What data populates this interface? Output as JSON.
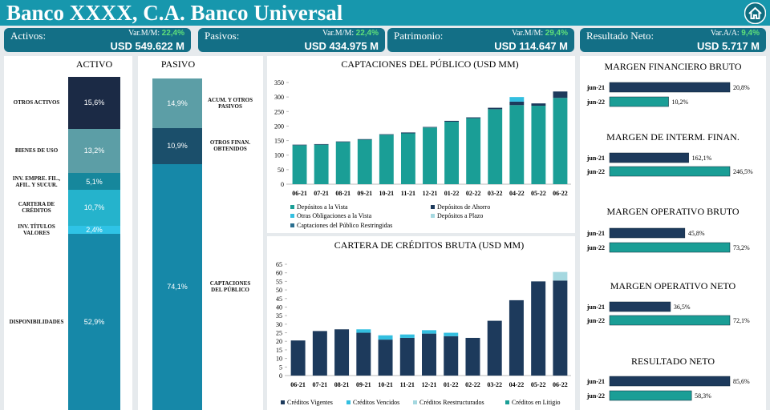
{
  "header": {
    "title": "Banco XXXX, C.A. Banco Universal"
  },
  "kpis": [
    {
      "label": "Activos:",
      "change_label": "Var.M/M:",
      "change": "22,4%",
      "value": "USD 549.622 M"
    },
    {
      "label": "Pasivos:",
      "change_label": "Var.M/M:",
      "change": "22,4%",
      "value": "USD 434.975 M"
    },
    {
      "label": "Patrimonio:",
      "change_label": "Var.M/M:",
      "change": "29,4%",
      "value": "USD 114.647 M"
    },
    {
      "label": "Resultado Neto:",
      "change_label": "Var.A/A:",
      "change": "9,4%",
      "value": "USD 5.717 M"
    }
  ],
  "chart_data": [
    {
      "type": "stack",
      "title": "ACTIVO",
      "series": [
        {
          "name": "DISPONIBILIDADES",
          "color": "#1688a8",
          "values": [
            52.9
          ],
          "value_labels": [
            "52,9%"
          ]
        },
        {
          "name": "INV. TÍTULOS VALORES",
          "color": "#2fc3e6",
          "values": [
            2.4
          ],
          "value_labels": [
            "2,4%"
          ]
        },
        {
          "name": "CARTERA DE CRÉDITOS",
          "color": "#25b3cc",
          "values": [
            10.7
          ],
          "value_labels": [
            "10,7%"
          ]
        },
        {
          "name": "INV. EMPRE. FIL., AFIL. Y SUCUR.",
          "color": "#16879c",
          "values": [
            5.1
          ],
          "value_labels": [
            "5,1%"
          ]
        },
        {
          "name": "BIENES DE USO",
          "color": "#5c9ea6",
          "values": [
            13.2
          ],
          "value_labels": [
            "13,2%"
          ]
        },
        {
          "name": "OTROS ACTIVOS",
          "color": "#1b2a45",
          "values": [
            15.6
          ],
          "value_labels": [
            "15,6%"
          ]
        }
      ]
    },
    {
      "type": "stack",
      "title": "PASIVO",
      "series": [
        {
          "name": "CAPTACIONES DEL PÚBLICO",
          "color": "#1688a8",
          "values": [
            74.1
          ],
          "value_labels": [
            "74,1%"
          ]
        },
        {
          "name": "OTROS FINAN. OBTENIDOS",
          "color": "#1b4f6b",
          "values": [
            10.9
          ],
          "value_labels": [
            "10,9%"
          ]
        },
        {
          "name": "ACUM. Y OTROS PASIVOS",
          "color": "#5c9ea6",
          "values": [
            14.9
          ],
          "value_labels": [
            "14,9%"
          ]
        }
      ]
    },
    {
      "type": "column",
      "title": "CAPTACIONES DEL PÚBLICO (USD MM)",
      "categories": [
        "06-21",
        "07-21",
        "08-21",
        "09-21",
        "10-21",
        "11-21",
        "12-21",
        "01-22",
        "02-22",
        "03-22",
        "04-22",
        "05-22",
        "06-22"
      ],
      "ylim": [
        0,
        350
      ],
      "yticks": [
        0,
        50,
        100,
        150,
        200,
        250,
        300,
        350
      ],
      "series": [
        {
          "name": "Depósitos a la Vista",
          "color": "#1a9e96",
          "values": [
            134,
            136,
            145,
            153,
            170,
            175,
            195,
            215,
            227,
            258,
            272,
            270,
            297
          ]
        },
        {
          "name": "Depósitos de Ahorro",
          "color": "#1d3a5c",
          "values": [
            2,
            2,
            2,
            2,
            2,
            3,
            2,
            3,
            3,
            5,
            12,
            8,
            22
          ]
        },
        {
          "name": "Otras Obligaciones a la Vista",
          "color": "#33bfe0",
          "values": [
            0,
            0,
            0,
            0,
            0,
            0,
            0,
            0,
            0,
            0,
            16,
            0,
            0
          ]
        },
        {
          "name": "Depósitos a Plazo",
          "color": "#a5d8e0",
          "values": [
            0,
            0,
            0,
            0,
            0,
            0,
            0,
            0,
            0,
            0,
            0,
            0,
            0
          ]
        },
        {
          "name": "Captaciones del Público Restringidas",
          "color": "#2a6e8f",
          "values": [
            0,
            0,
            0,
            0,
            0,
            0,
            0,
            0,
            0,
            0,
            0,
            0,
            0
          ]
        }
      ]
    },
    {
      "type": "column",
      "title": "CARTERA DE CRÉDITOS BRUTA (USD MM)",
      "categories": [
        "06-21",
        "07-21",
        "08-21",
        "09-21",
        "10-21",
        "11-21",
        "12-21",
        "01-22",
        "02-22",
        "03-22",
        "04-22",
        "05-22",
        "06-22"
      ],
      "ylim": [
        0,
        65
      ],
      "yticks": [
        0,
        5,
        10,
        15,
        20,
        25,
        30,
        35,
        40,
        45,
        50,
        55,
        60,
        65
      ],
      "series": [
        {
          "name": "Créditos Vigentes",
          "color": "#1d3a5c",
          "values": [
            20.5,
            26,
            27,
            25,
            21,
            22,
            24.5,
            23,
            22,
            32,
            44,
            55,
            55.5
          ]
        },
        {
          "name": "Créditos Vencidos",
          "color": "#33bfe0",
          "values": [
            0,
            0,
            0,
            2,
            2.5,
            2,
            2,
            2,
            0,
            0,
            0,
            0,
            0
          ]
        },
        {
          "name": "Créditos Reestructurados",
          "color": "#a5d8e0",
          "values": [
            0,
            0,
            0,
            0,
            0,
            0,
            0,
            0,
            0,
            0,
            0,
            0,
            5
          ]
        },
        {
          "name": "Créditos en Litigio",
          "color": "#1a9e96",
          "values": [
            0,
            0,
            0,
            0,
            0,
            0,
            0,
            0,
            0,
            0,
            0,
            0,
            0
          ]
        }
      ]
    },
    {
      "type": "hbar",
      "title": "MARGEN FINANCIERO BRUTO",
      "categories": [
        "jun-21",
        "jun-22"
      ],
      "colors": [
        "#1d3a5c",
        "#1a9e96"
      ],
      "values": [
        20.8,
        10.2
      ],
      "value_labels": [
        "20,8%",
        "10,2%"
      ]
    },
    {
      "type": "hbar",
      "title": "MARGEN DE INTERM. FINAN.",
      "categories": [
        "jun-21",
        "jun-22"
      ],
      "colors": [
        "#1d3a5c",
        "#1a9e96"
      ],
      "values": [
        162.1,
        246.5
      ],
      "value_labels": [
        "162,1%",
        "246,5%"
      ]
    },
    {
      "type": "hbar",
      "title": "MARGEN OPERATIVO BRUTO",
      "categories": [
        "jun-21",
        "jun-22"
      ],
      "colors": [
        "#1d3a5c",
        "#1a9e96"
      ],
      "values": [
        45.8,
        73.2
      ],
      "value_labels": [
        "45,8%",
        "73,2%"
      ]
    },
    {
      "type": "hbar",
      "title": "MARGEN OPERATIVO NETO",
      "categories": [
        "jun-21",
        "jun-22"
      ],
      "colors": [
        "#1d3a5c",
        "#1a9e96"
      ],
      "values": [
        36.5,
        72.1
      ],
      "value_labels": [
        "36,5%",
        "72,1%"
      ]
    },
    {
      "type": "hbar",
      "title": "RESULTADO NETO",
      "categories": [
        "jun-21",
        "jun-22"
      ],
      "colors": [
        "#1d3a5c",
        "#1a9e96"
      ],
      "values": [
        85.6,
        58.3
      ],
      "value_labels": [
        "85,6%",
        "58,3%"
      ]
    }
  ]
}
